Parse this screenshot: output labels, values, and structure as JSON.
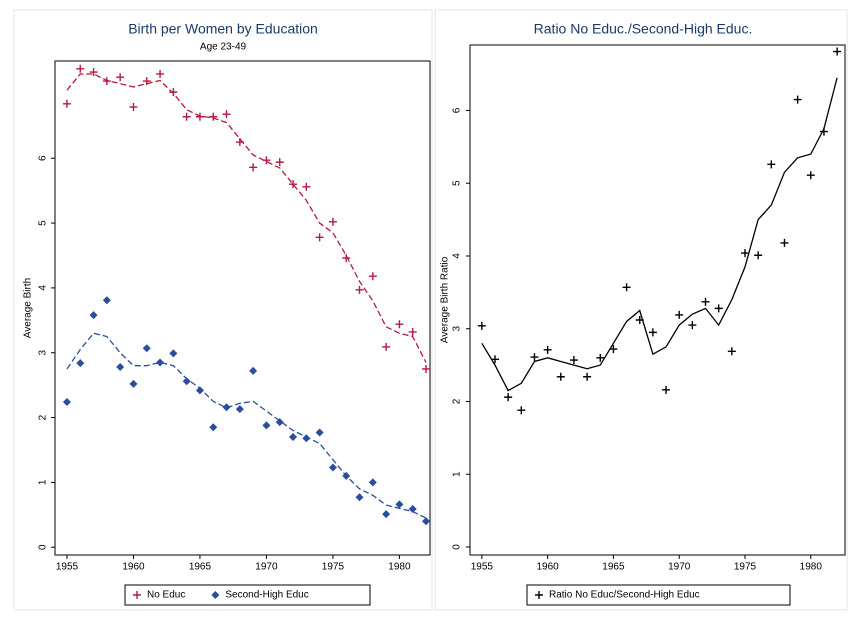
{
  "chart_data": [
    {
      "type": "scatter",
      "title": "Birth per Women by Education",
      "subtitle": "Age 23-49",
      "y_label": "Average Birth",
      "x": [
        1955,
        1956,
        1957,
        1958,
        1959,
        1960,
        1961,
        1962,
        1963,
        1964,
        1965,
        1966,
        1967,
        1968,
        1969,
        1970,
        1971,
        1972,
        1973,
        1974,
        1975,
        1976,
        1977,
        1978,
        1979,
        1980,
        1981,
        1982
      ],
      "series": [
        {
          "name": "No Educ",
          "color": "#b8183c",
          "marker": "plus",
          "smooth_style": "dashed",
          "values": [
            6.84,
            7.38,
            7.33,
            7.19,
            7.25,
            6.79,
            7.19,
            7.3,
            7.02,
            6.64,
            6.64,
            6.64,
            6.68,
            6.25,
            5.86,
            5.97,
            5.94,
            5.6,
            5.56,
            4.78,
            5.02,
            4.46,
            3.97,
            4.18,
            3.09,
            3.44,
            3.32,
            2.75
          ],
          "smooth": [
            7.05,
            7.3,
            7.3,
            7.2,
            7.15,
            7.1,
            7.15,
            7.2,
            7.0,
            6.75,
            6.65,
            6.62,
            6.55,
            6.3,
            6.05,
            5.95,
            5.85,
            5.6,
            5.35,
            5.0,
            4.85,
            4.5,
            4.1,
            3.8,
            3.4,
            3.3,
            3.25,
            2.85
          ]
        },
        {
          "name": "Second-High Educ",
          "color": "#2a4d9e",
          "marker": "diamond",
          "smooth_style": "dashed",
          "values": [
            2.24,
            2.84,
            3.58,
            3.81,
            2.78,
            2.52,
            3.07,
            2.85,
            2.99,
            2.56,
            2.42,
            1.85,
            2.16,
            2.13,
            2.72,
            1.88,
            1.93,
            1.7,
            1.68,
            1.77,
            1.23,
            1.1,
            0.77,
            1.0,
            0.51,
            0.66,
            0.59,
            0.4
          ],
          "smooth": [
            2.75,
            3.05,
            3.3,
            3.25,
            3.0,
            2.8,
            2.8,
            2.85,
            2.8,
            2.6,
            2.45,
            2.25,
            2.15,
            2.22,
            2.25,
            2.1,
            1.95,
            1.8,
            1.7,
            1.6,
            1.35,
            1.1,
            0.9,
            0.8,
            0.65,
            0.6,
            0.55,
            0.45
          ]
        }
      ],
      "xlim": [
        1954.1,
        1982.3
      ],
      "xticks": [
        1955,
        1960,
        1965,
        1970,
        1975,
        1980
      ],
      "ylim": [
        -0.12,
        7.5
      ],
      "yticks": [
        0,
        1,
        2,
        3,
        4,
        5,
        6
      ]
    },
    {
      "type": "scatter",
      "title": "Ratio No Educ./Second-High Educ.",
      "y_label": "Average Birth Ratio",
      "x": [
        1955,
        1956,
        1957,
        1958,
        1959,
        1960,
        1961,
        1962,
        1963,
        1964,
        1965,
        1966,
        1967,
        1968,
        1969,
        1970,
        1971,
        1972,
        1973,
        1974,
        1975,
        1976,
        1977,
        1978,
        1979,
        1980,
        1981,
        1982
      ],
      "series": [
        {
          "name": "Ratio No Educ/Second-High Educ",
          "color": "#000000",
          "marker": "plus",
          "smooth_style": "solid",
          "values": [
            3.04,
            2.58,
            2.06,
            1.88,
            2.61,
            2.71,
            2.34,
            2.57,
            2.34,
            2.6,
            2.72,
            3.57,
            3.12,
            2.95,
            2.16,
            3.19,
            3.05,
            3.37,
            3.28,
            2.69,
            4.04,
            4.01,
            5.26,
            4.18,
            6.15,
            5.11,
            5.71,
            6.81
          ],
          "smooth": [
            2.8,
            2.5,
            2.15,
            2.25,
            2.55,
            2.6,
            2.55,
            2.5,
            2.45,
            2.5,
            2.8,
            3.1,
            3.25,
            2.65,
            2.75,
            3.05,
            3.2,
            3.28,
            3.05,
            3.4,
            3.85,
            4.5,
            4.7,
            5.15,
            5.35,
            5.4,
            5.75,
            6.45
          ]
        }
      ],
      "xlim": [
        1954.1,
        1982.6
      ],
      "xticks": [
        1955,
        1960,
        1965,
        1970,
        1975,
        1980
      ],
      "ylim": [
        -0.11,
        6.9
      ],
      "yticks": [
        0,
        1,
        2,
        3,
        4,
        5,
        6
      ]
    }
  ]
}
